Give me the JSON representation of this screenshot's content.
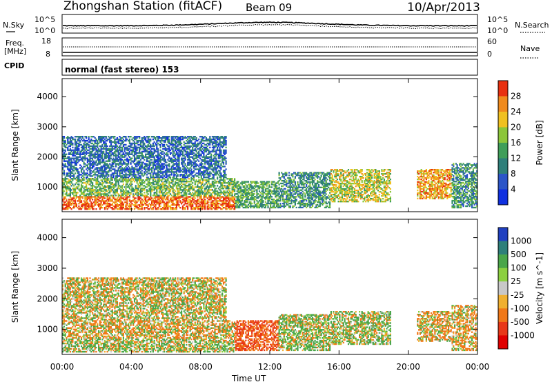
{
  "header": {
    "station": "Zhongshan Station (fitACF)",
    "beam": "Beam 09",
    "date": "10/Apr/2013"
  },
  "summary_panels": {
    "nsky": {
      "label": "N.Sky",
      "ytick_top": "10^5",
      "ytick_bottom": "10^0"
    },
    "nsearch": {
      "label": "N.Search",
      "ytick_top": "10^5",
      "ytick_bottom": "10^0"
    },
    "freq": {
      "label_1": "Freq.",
      "label_2": "[MHz]",
      "ytick_top": "18",
      "ytick_bottom": "8"
    },
    "nave": {
      "label": "Nave",
      "ytick_top": "60",
      "ytick_bottom": "0"
    },
    "cpid": {
      "label": "CPID",
      "mode": "normal (fast stereo) 153"
    }
  },
  "chart_data": [
    {
      "type": "heatmap",
      "title": "",
      "xlabel": "",
      "ylabel": "Slant Range [km]",
      "x_ticks": [
        "00:00",
        "04:00",
        "08:00",
        "12:00",
        "16:00",
        "20:00",
        "00:00"
      ],
      "xlim_hours": [
        0,
        24
      ],
      "ylim": [
        180,
        4600
      ],
      "y_ticks": [
        1000,
        2000,
        3000,
        4000
      ],
      "colorbar": {
        "label": "Power [dB]",
        "ticks": [
          4,
          8,
          12,
          16,
          20,
          24,
          28
        ],
        "range": [
          0,
          32
        ],
        "colors": [
          "#1030e0",
          "#2b55c8",
          "#2e7f7a",
          "#3f9e59",
          "#8cc63a",
          "#f0c020",
          "#f08a1c",
          "#e83010"
        ]
      },
      "echo_regions": [
        {
          "t_start": 0.0,
          "t_end": 10.0,
          "range_min_km": 250,
          "range_max_km": 700,
          "power_db": 28
        },
        {
          "t_start": 0.0,
          "t_end": 10.0,
          "range_min_km": 700,
          "range_max_km": 1300,
          "power_db": 16
        },
        {
          "t_start": 0.0,
          "t_end": 9.5,
          "range_min_km": 1300,
          "range_max_km": 2700,
          "power_db": 8
        },
        {
          "t_start": 10.0,
          "t_end": 12.5,
          "range_min_km": 300,
          "range_max_km": 1200,
          "power_db": 14
        },
        {
          "t_start": 12.5,
          "t_end": 15.5,
          "range_min_km": 300,
          "range_max_km": 1500,
          "power_db": 12
        },
        {
          "t_start": 15.5,
          "t_end": 19.0,
          "range_min_km": 500,
          "range_max_km": 1600,
          "power_db": 20
        },
        {
          "t_start": 20.5,
          "t_end": 22.5,
          "range_min_km": 600,
          "range_max_km": 1600,
          "power_db": 24
        },
        {
          "t_start": 22.5,
          "t_end": 24.0,
          "range_min_km": 300,
          "range_max_km": 1800,
          "power_db": 12
        }
      ]
    },
    {
      "type": "heatmap",
      "title": "",
      "xlabel": "Time UT",
      "ylabel": "Slant Range [km]",
      "x_ticks": [
        "00:00",
        "04:00",
        "08:00",
        "12:00",
        "16:00",
        "20:00",
        "00:00"
      ],
      "xlim_hours": [
        0,
        24
      ],
      "ylim": [
        180,
        4600
      ],
      "y_ticks": [
        1000,
        2000,
        3000,
        4000
      ],
      "colorbar": {
        "label": "Velocity [m s^-1]",
        "ticks": [
          1000,
          500,
          100,
          25,
          -25,
          -100,
          -500,
          -1000
        ],
        "range": [
          -1500,
          1500
        ],
        "colors": [
          "#2040c0",
          "#2e7f7a",
          "#4aa64a",
          "#8cd040",
          "#c8c8c8",
          "#f0b030",
          "#f07818",
          "#e83818",
          "#e00000"
        ]
      },
      "echo_regions": [
        {
          "t_start": 0.0,
          "t_end": 10.0,
          "range_min_km": 250,
          "range_max_km": 700,
          "velocity_ms": 100
        },
        {
          "t_start": 0.0,
          "t_end": 10.0,
          "range_min_km": 700,
          "range_max_km": 1300,
          "velocity_ms": -100
        },
        {
          "t_start": 0.0,
          "t_end": 9.5,
          "range_min_km": 1300,
          "range_max_km": 2700,
          "velocity_ms": 0
        },
        {
          "t_start": 10.0,
          "t_end": 12.5,
          "range_min_km": 300,
          "range_max_km": 1300,
          "velocity_ms": -500
        },
        {
          "t_start": 12.5,
          "t_end": 15.5,
          "range_min_km": 300,
          "range_max_km": 1500,
          "velocity_ms": 100
        },
        {
          "t_start": 15.5,
          "t_end": 19.0,
          "range_min_km": 500,
          "range_max_km": 1600,
          "velocity_ms": 100
        },
        {
          "t_start": 20.5,
          "t_end": 22.5,
          "range_min_km": 600,
          "range_max_km": 1600,
          "velocity_ms": -100
        },
        {
          "t_start": 22.5,
          "t_end": 24.0,
          "range_min_km": 300,
          "range_max_km": 1800,
          "velocity_ms": -100
        }
      ]
    }
  ]
}
